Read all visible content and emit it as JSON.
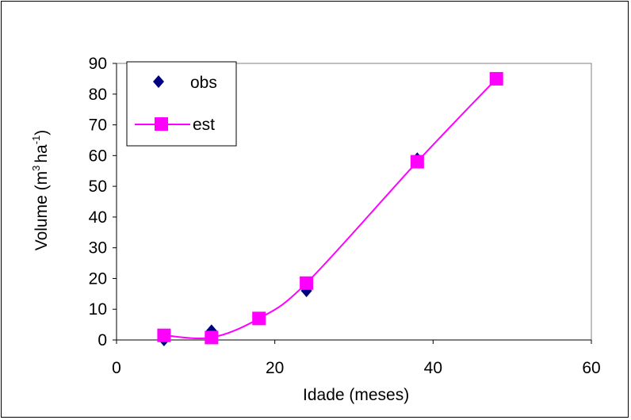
{
  "chart_data": {
    "type": "scatter",
    "xlabel": "Idade (meses)",
    "ylabel": "Volume  (m3 ha-1)",
    "ylabel_parts": {
      "prefix": "Volume  (m",
      "sup1": "3",
      "mid": "ha",
      "sup2": "-1",
      "suffix": ")"
    },
    "xlim": [
      0,
      60
    ],
    "ylim": [
      0,
      90
    ],
    "x_ticks": [
      "0",
      "20",
      "40",
      "60"
    ],
    "y_ticks": [
      "0",
      "10",
      "20",
      "30",
      "40",
      "50",
      "60",
      "70",
      "80",
      "90"
    ],
    "grid": false,
    "legend_position": "top-left",
    "series": [
      {
        "name": "obs",
        "marker": "diamond",
        "line": false,
        "color": "#000080",
        "x": [
          6,
          12,
          18,
          24,
          38,
          48
        ],
        "y": [
          0,
          3,
          7,
          16,
          59,
          85
        ]
      },
      {
        "name": "est",
        "marker": "square",
        "line": true,
        "color": "#ff00ff",
        "x": [
          6,
          12,
          18,
          24,
          38,
          48
        ],
        "y": [
          1.5,
          0.8,
          7,
          18.5,
          58,
          85
        ]
      }
    ]
  }
}
